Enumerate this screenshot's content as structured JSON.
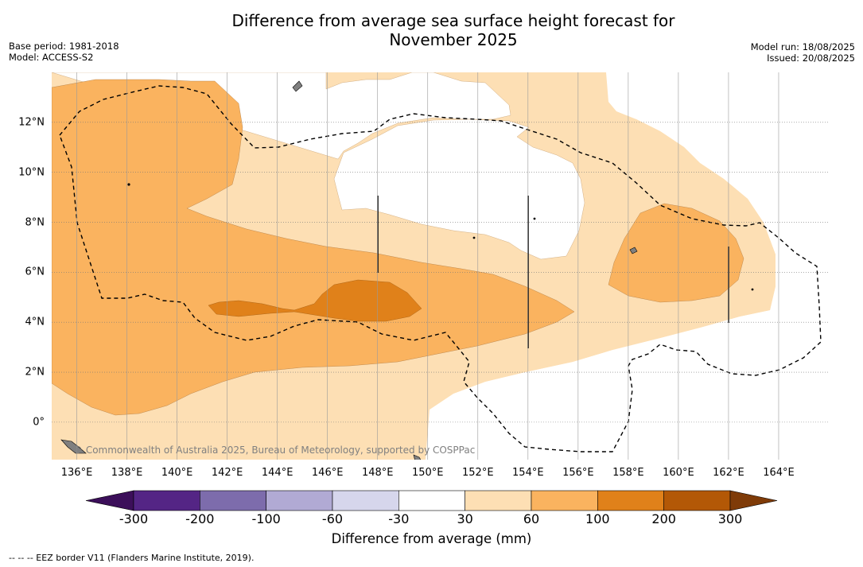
{
  "title_line1": "Difference from average sea surface height forecast for",
  "title_line2": "November 2025",
  "base_period": "Base period: 1981-2018",
  "model": "Model: ACCESS-S2",
  "model_run": "Model run: 18/08/2025",
  "issued": "Issued: 20/08/2025",
  "copyright": "© Commonwealth of Australia 2025, Bureau of Meteorology, supported by COSPPac",
  "footnote": "-- -- -- EEZ border V11 (Flanders Marine Institute, 2019).",
  "colorbar": {
    "label": "Difference from average (mm)",
    "ticks": [
      "-300",
      "-200",
      "-100",
      "-60",
      "-30",
      "30",
      "60",
      "100",
      "200",
      "300"
    ],
    "colors": [
      "#3c0f5a",
      "#542585",
      "#7d6cac",
      "#b1aad4",
      "#d6d6ec",
      "#ffffff",
      "#fddfb4",
      "#fab35f",
      "#e0811a",
      "#b35806",
      "#7f3b08"
    ]
  },
  "axes": {
    "lon_labels": [
      "136°E",
      "138°E",
      "140°E",
      "142°E",
      "144°E",
      "146°E",
      "148°E",
      "150°E",
      "152°E",
      "154°E",
      "156°E",
      "158°E",
      "160°E",
      "162°E",
      "164°E"
    ],
    "lat_labels": [
      "12°N",
      "10°N",
      "8°N",
      "6°N",
      "4°N",
      "2°N",
      "0°"
    ]
  },
  "map": {
    "lon_range": [
      135,
      166
    ],
    "lat_range": [
      -1.5,
      14
    ],
    "background_color": "#fddfb4",
    "land_color": "#808080"
  }
}
